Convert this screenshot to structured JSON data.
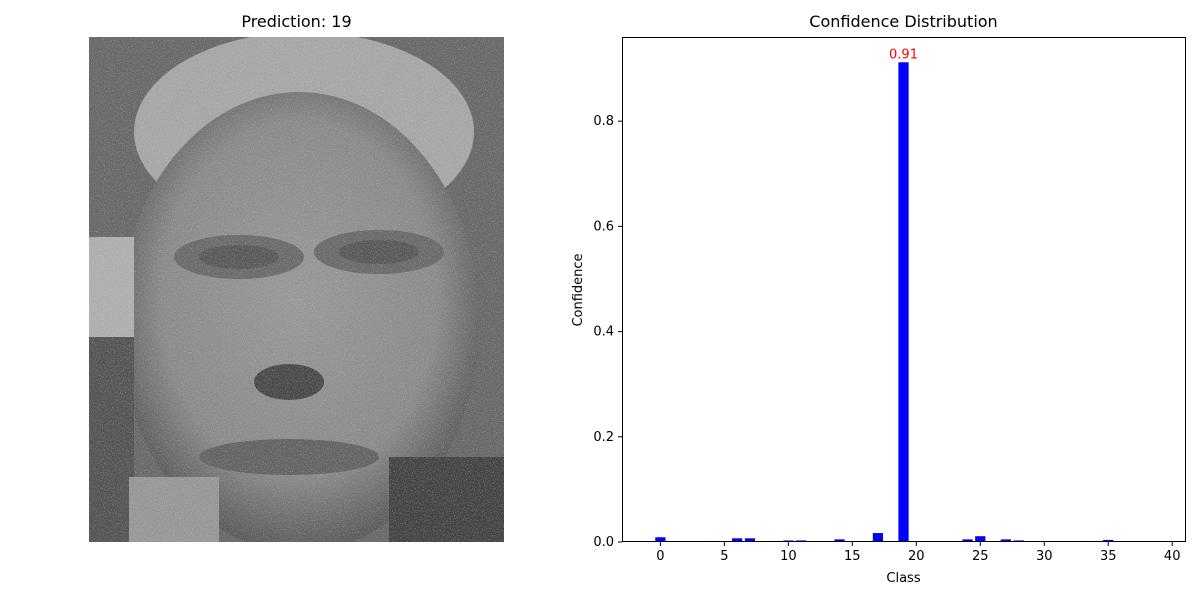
{
  "left_panel": {
    "title": "Prediction: 19",
    "image_description_icon": "noisy-grayscale-face-image"
  },
  "chart_data": {
    "type": "bar",
    "title": "Confidence Distribution",
    "xlabel": "Class",
    "ylabel": "Confidence",
    "xlim": [
      -3,
      41
    ],
    "ylim": [
      0,
      0.96
    ],
    "xticks": [
      0,
      5,
      10,
      15,
      20,
      25,
      30,
      35,
      40
    ],
    "yticks": [
      0.0,
      0.2,
      0.4,
      0.6,
      0.8
    ],
    "ytick_labels": [
      "0.0",
      "0.2",
      "0.4",
      "0.6",
      "0.8"
    ],
    "bar_color": "#0000ff",
    "annotation": {
      "class": 19,
      "text": "0.91",
      "color": "#ff0000"
    },
    "categories": [
      0,
      1,
      2,
      3,
      4,
      5,
      6,
      7,
      8,
      9,
      10,
      11,
      12,
      13,
      14,
      15,
      16,
      17,
      18,
      19,
      20,
      21,
      22,
      23,
      24,
      25,
      26,
      27,
      28,
      29,
      30,
      31,
      32,
      33,
      34,
      35,
      36,
      37,
      38,
      39
    ],
    "values": [
      0.009,
      0.0,
      0.0,
      0.0,
      0.002,
      0.0,
      0.007,
      0.007,
      0.0,
      0.002,
      0.003,
      0.003,
      0.0,
      0.0,
      0.005,
      0.0,
      0.0,
      0.017,
      0.0,
      0.912,
      0.0,
      0.0,
      0.0,
      0.0,
      0.005,
      0.011,
      0.0,
      0.005,
      0.003,
      0.0,
      0.0,
      0.0,
      0.0,
      0.002,
      0.0,
      0.004,
      0.0,
      0.0,
      0.0,
      0.0
    ]
  }
}
